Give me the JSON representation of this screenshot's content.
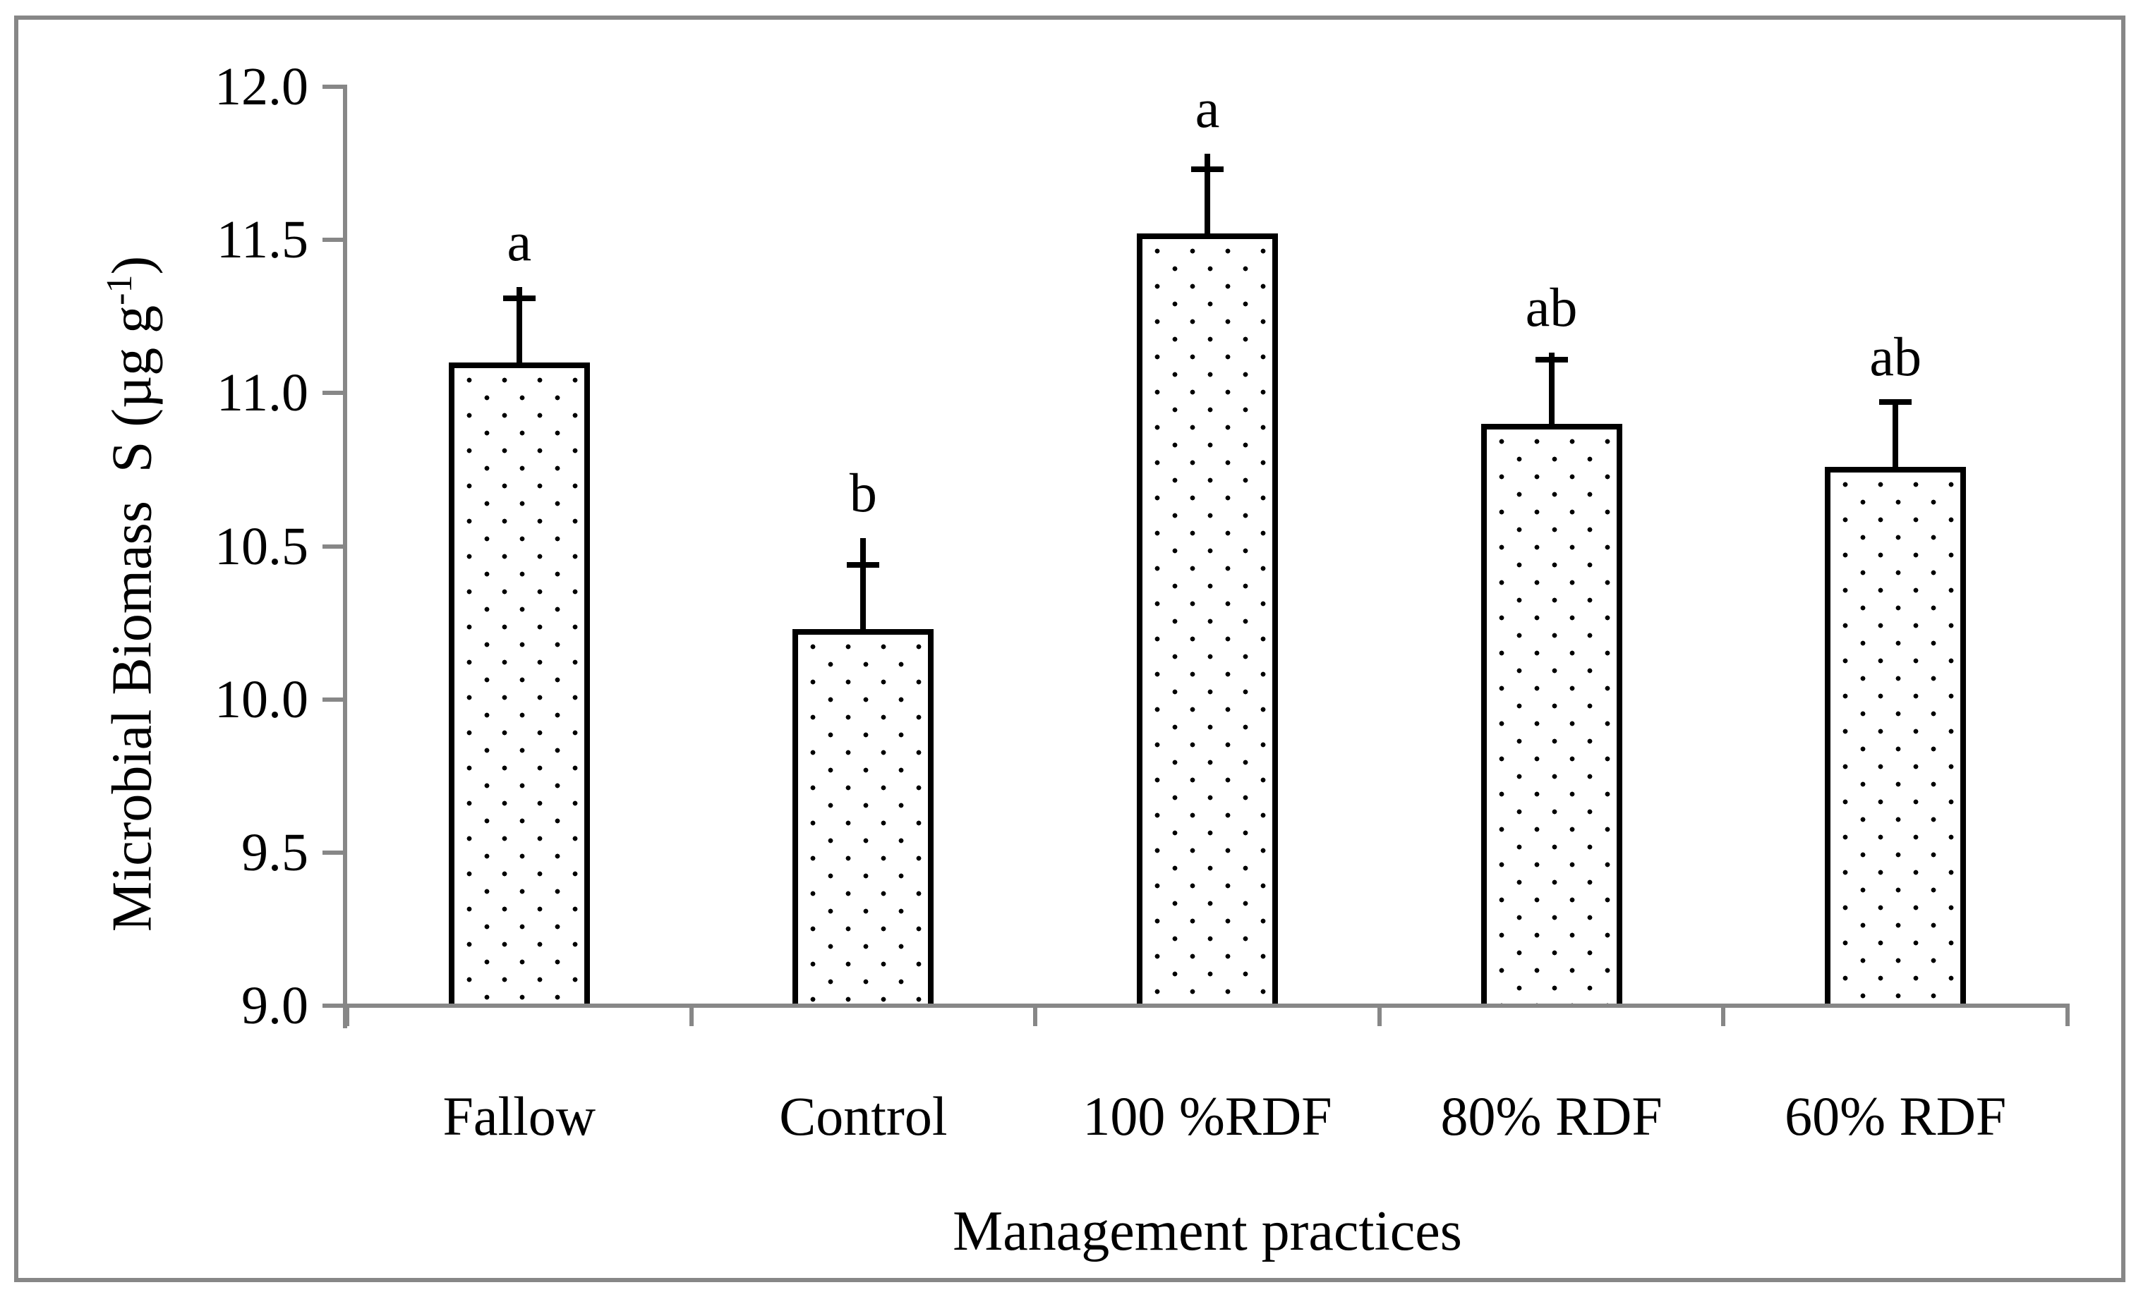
{
  "figure": {
    "background": "#ffffff",
    "border_color": "#878787",
    "axis_color": "#878787",
    "text_color": "#000000",
    "bar_style": {
      "fill": "#ffffff",
      "pattern": "black-dot-grid",
      "border": "#000000"
    }
  },
  "chart_data": {
    "type": "bar",
    "title": "",
    "categories": [
      "Fallow",
      "Control",
      "100 %RDF",
      "80% RDF",
      "60% RDF"
    ],
    "values": [
      11.1,
      10.23,
      11.52,
      10.9,
      10.76
    ],
    "errors": [
      0.21,
      0.21,
      0.21,
      0.21,
      0.21
    ],
    "sig_letters": [
      "a",
      "b",
      "a",
      "ab",
      "ab"
    ],
    "xlabel": "Management practices",
    "ylabel": "Microbial Biomass  S (µg g⁻¹)",
    "ylabel_parts": {
      "main": "Microbial Biomass  S (µg g",
      "sup": "-1",
      "close": ")"
    },
    "ylim": [
      9.0,
      12.0
    ],
    "ytick_step": 0.5,
    "yticks": [
      "12.0",
      "11.5",
      "11.0",
      "10.5",
      "10.0",
      "9.5",
      "9.0"
    ],
    "grid": false,
    "legend": "none",
    "error_bar_style": "plus-se-caps"
  }
}
